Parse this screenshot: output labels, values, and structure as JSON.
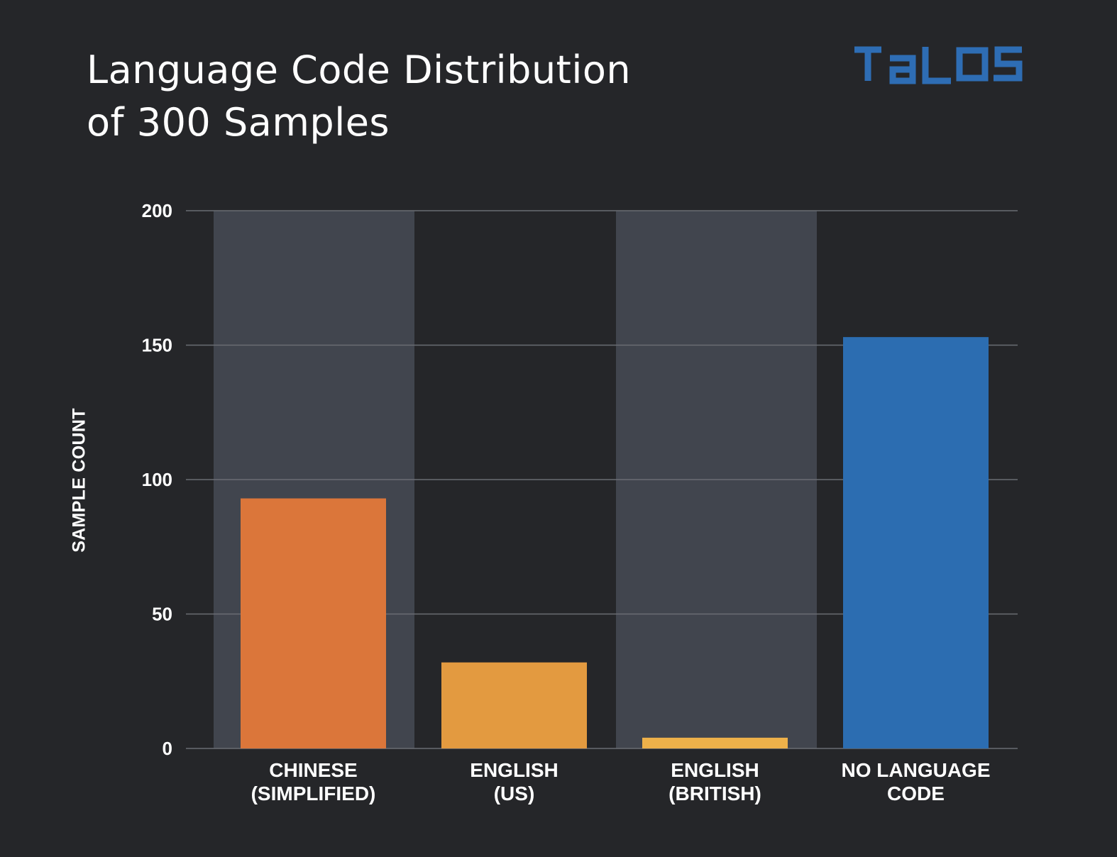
{
  "brand": {
    "logo_text": "TaLOS",
    "logo_color": "#2e6db4"
  },
  "chart_data": {
    "type": "bar",
    "title": "Language Code Distribution of 300 Samples",
    "title_lines": [
      "Language Code Distribution",
      "of 300 Samples"
    ],
    "ylabel": "SAMPLE COUNT",
    "xlabel": "",
    "ylim": [
      0,
      200
    ],
    "yticks": [
      0,
      50,
      100,
      150,
      200
    ],
    "grid": true,
    "categories": [
      [
        "CHINESE",
        "(SIMPLIFIED)"
      ],
      [
        "ENGLISH",
        "(US)"
      ],
      [
        "ENGLISH",
        "(BRITISH)"
      ],
      [
        "NO LANGUAGE",
        "CODE"
      ]
    ],
    "values": [
      93,
      32,
      4,
      153
    ],
    "colors": [
      "#db763a",
      "#e39a40",
      "#eeb14a",
      "#2c6db1"
    ],
    "band_color": "#41454e",
    "background": "#252629",
    "gridline_color": "#6a6d73"
  }
}
